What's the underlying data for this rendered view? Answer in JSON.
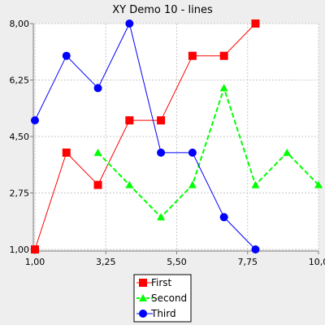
{
  "chart_data": {
    "type": "line",
    "title": "XY Demo 10 - lines",
    "xlabel": "",
    "ylabel": "",
    "xlim": [
      1.0,
      10.0
    ],
    "ylim": [
      1.0,
      8.0
    ],
    "x_ticks": [
      "1,00",
      "3,25",
      "5,50",
      "7,75",
      "10,0"
    ],
    "x_tick_values": [
      1.0,
      3.25,
      5.5,
      7.75,
      10.0
    ],
    "y_ticks": [
      "1,00",
      "2,75",
      "4,50",
      "6,25",
      "8,00"
    ],
    "y_tick_values": [
      1.0,
      2.75,
      4.5,
      6.25,
      8.0
    ],
    "grid": true,
    "legend_position": "bottom",
    "series": [
      {
        "name": "First",
        "color": "#ff0000",
        "marker": "square",
        "line_style": "solid",
        "x": [
          1,
          2,
          3,
          4,
          5,
          6,
          7,
          8
        ],
        "y": [
          1,
          4,
          3,
          5,
          5,
          7,
          7,
          8
        ]
      },
      {
        "name": "Second",
        "color": "#00ff00",
        "marker": "triangle",
        "line_style": "dashed",
        "x": [
          3,
          4,
          5,
          6,
          7,
          8,
          9,
          10
        ],
        "y": [
          4,
          3,
          2,
          3,
          6,
          3,
          4,
          3
        ]
      },
      {
        "name": "Third",
        "color": "#0000ff",
        "marker": "circle",
        "line_style": "solid",
        "x": [
          1,
          2,
          3,
          4,
          5,
          6,
          7,
          8
        ],
        "y": [
          5,
          7,
          6,
          8,
          4,
          4,
          2,
          1
        ]
      }
    ]
  }
}
